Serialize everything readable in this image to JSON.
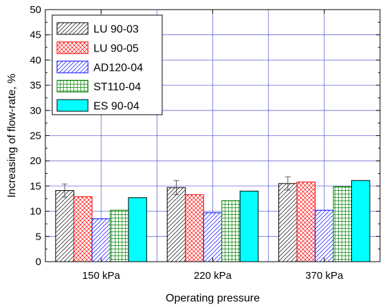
{
  "chart_data": {
    "type": "bar",
    "xlabel": "Operating pressure",
    "ylabel": "Increasing of flow-rate, %",
    "ylim": [
      0,
      50
    ],
    "yticks": [
      0,
      5,
      10,
      15,
      20,
      25,
      30,
      35,
      40,
      45,
      50
    ],
    "grid": true,
    "legend_position": "top-left",
    "categories": [
      "150 kPa",
      "220 kPa",
      "370 kPa"
    ],
    "series": [
      {
        "name": "LU  90-03",
        "values": [
          14.1,
          14.7,
          15.5
        ],
        "error": [
          1.3,
          1.4,
          1.3
        ],
        "color": "#000000",
        "pattern": "diagonal-single"
      },
      {
        "name": "LU  90-05",
        "values": [
          12.9,
          13.3,
          15.8
        ],
        "color": "#ff0000",
        "pattern": "crosshatch-diagonal"
      },
      {
        "name": "AD120-04",
        "values": [
          8.5,
          9.7,
          10.2
        ],
        "color": "#0000ff",
        "pattern": "diagonal-single"
      },
      {
        "name": "ST110-04",
        "values": [
          10.2,
          12.1,
          14.9
        ],
        "color": "#008000",
        "pattern": "grid-square"
      },
      {
        "name": "ES  90-04",
        "values": [
          12.7,
          14.0,
          16.1
        ],
        "color": "#00ffff",
        "pattern": "solid"
      }
    ]
  }
}
